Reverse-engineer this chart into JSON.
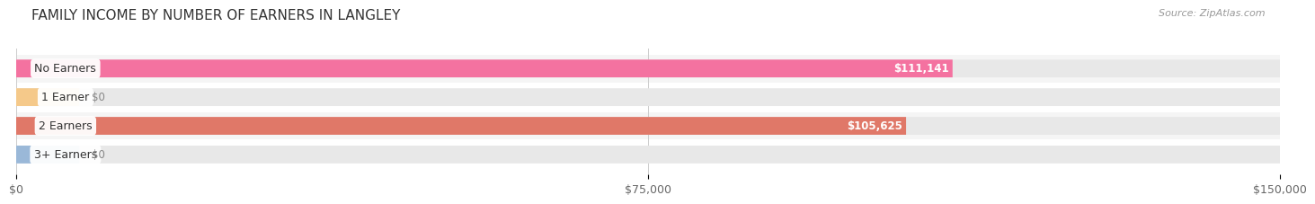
{
  "title": "FAMILY INCOME BY NUMBER OF EARNERS IN LANGLEY",
  "source": "Source: ZipAtlas.com",
  "categories": [
    "No Earners",
    "1 Earner",
    "2 Earners",
    "3+ Earners"
  ],
  "values": [
    111141,
    0,
    105625,
    0
  ],
  "bar_colors": [
    "#f472a0",
    "#f5c98a",
    "#e07868",
    "#9ab8d8"
  ],
  "xlim": [
    0,
    150000
  ],
  "xtick_vals": [
    0,
    75000,
    150000
  ],
  "xtick_labels": [
    "$0",
    "$75,000",
    "$150,000"
  ],
  "bar_height": 0.62,
  "row_bg_colors": [
    "#f5f5f5",
    "#ffffff",
    "#f5f5f5",
    "#ffffff"
  ],
  "bar_bg_color": "#e8e8e8",
  "fig_bg": "#ffffff",
  "label_fontsize": 9,
  "value_fontsize": 8.5,
  "title_fontsize": 11,
  "source_fontsize": 8,
  "small_val": 7500
}
